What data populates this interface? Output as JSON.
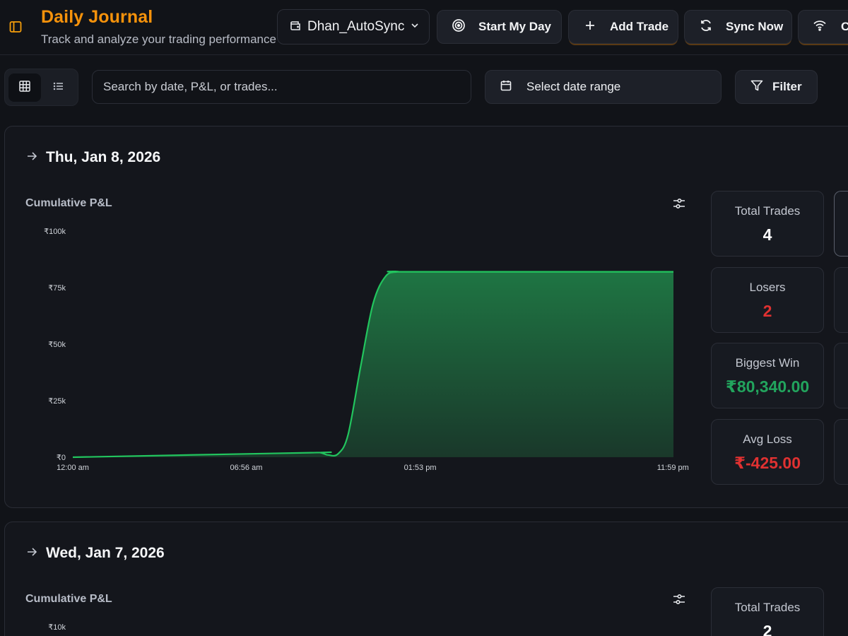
{
  "header": {
    "title": "Daily Journal",
    "subtitle": "Track and analyze your trading performance",
    "account": "Dhan_AutoSync",
    "buttons": {
      "start_my_day": "Start My Day",
      "add_trade": "Add Trade",
      "sync_now": "Sync Now",
      "connect": "Connect"
    }
  },
  "toolbar": {
    "search_placeholder": "Search by date, P&L, or trades...",
    "date_range": "Select date range",
    "filter": "Filter"
  },
  "days": [
    {
      "date": "Thu, Jan 8, 2026",
      "chart_title": "Cumulative P&L",
      "stats": {
        "total_trades_label": "Total Trades",
        "total_trades": "4",
        "losers_label": "Losers",
        "losers": "2",
        "biggest_win_label": "Biggest Win",
        "biggest_win": "₹80,340.00",
        "avg_loss_label": "Avg Loss",
        "avg_loss": "₹-425.00"
      }
    },
    {
      "date": "Wed, Jan 7, 2026",
      "chart_title": "Cumulative P&L",
      "stats": {
        "total_trades_label": "Total Trades",
        "total_trades": "2"
      }
    }
  ],
  "colors": {
    "accent": "#f5920b",
    "profit": "#22c55e",
    "loss": "#e03131",
    "background": "#111318"
  },
  "chart_data": [
    {
      "type": "area",
      "title": "Cumulative P&L",
      "xlabel": "",
      "ylabel": "",
      "x_ticks": [
        "12:00 am",
        "06:56 am",
        "01:53 pm",
        "11:59 pm"
      ],
      "y_ticks": [
        "₹0",
        "₹25k",
        "₹50k",
        "₹75k",
        "₹100k"
      ],
      "ylim": [
        0,
        100000
      ],
      "xlim_hours": [
        0,
        24
      ],
      "series": [
        {
          "x": [
            0.0,
            9.5,
            9.9,
            10.2,
            10.6,
            11.0,
            11.5,
            12.0,
            12.5,
            13.0,
            13.5,
            24.0
          ],
          "values": [
            0,
            2000,
            2000,
            1000,
            1500,
            10000,
            40000,
            68000,
            80000,
            82000,
            82000,
            82000
          ]
        }
      ],
      "line_color": "#22c55e",
      "grid": false
    },
    {
      "type": "area",
      "title": "Cumulative P&L",
      "y_ticks": [
        "₹10k"
      ]
    }
  ]
}
